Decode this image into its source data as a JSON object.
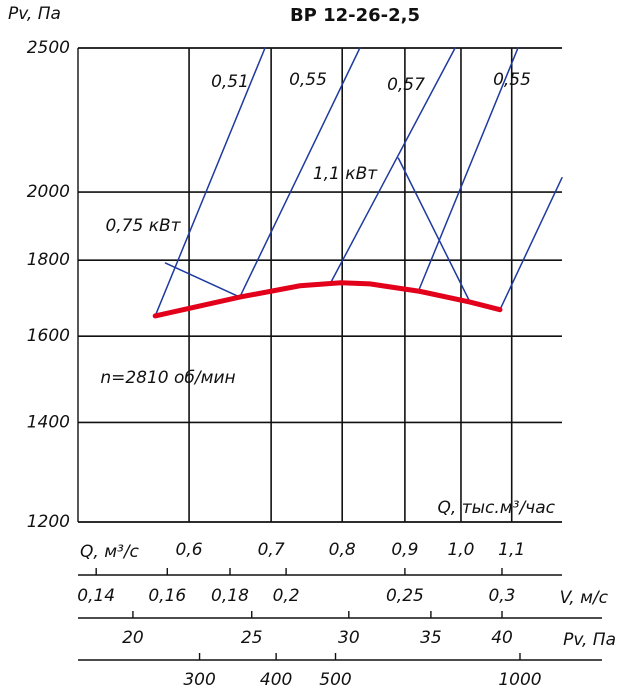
{
  "chart_data": {
    "type": "line",
    "title": "ВР 12-26-2,5",
    "ylabel": "Pv, Па",
    "xlabel": "Q, тыс.м³/час",
    "xscale": "log",
    "yscale": "log",
    "grid": true,
    "xlim": [
      0.487,
      1.209
    ],
    "ylim": [
      1200,
      2500
    ],
    "xticks": [
      {
        "value": 0.6,
        "label": "0,6"
      },
      {
        "value": 0.7,
        "label": "0,7"
      },
      {
        "value": 0.8,
        "label": "0,8"
      },
      {
        "value": 0.9,
        "label": "0,9"
      },
      {
        "value": 1.0,
        "label": "1,0"
      },
      {
        "value": 1.1,
        "label": "1,1"
      }
    ],
    "yticks": [
      1200,
      1400,
      1600,
      1800,
      2000,
      2500
    ],
    "series": [
      {
        "color": "#e3001b",
        "x": [
          0.563,
          0.66,
          0.739,
          0.798,
          0.843,
          0.926,
          1.017,
          1.076
        ],
        "values": [
          1651,
          1700,
          1730,
          1738,
          1735,
          1715,
          1687,
          1667
        ]
      },
      {
        "color": "#1f3aa0",
        "x": [
          0.563,
          0.692
        ],
        "values": [
          1651,
          2500
        ]
      },
      {
        "color": "#1f3aa0",
        "x": [
          0.66,
          0.827
        ],
        "values": [
          1700,
          2500
        ]
      },
      {
        "color": "#1f3aa0",
        "x": [
          0.782,
          0.989
        ],
        "values": [
          1735,
          2500
        ]
      },
      {
        "color": "#1f3aa0",
        "x": [
          0.923,
          1.113
        ],
        "values": [
          1715,
          2500
        ]
      },
      {
        "color": "#1f3aa0",
        "x": [
          1.076,
          1.209
        ],
        "values": [
          1667,
          2045
        ]
      },
      {
        "color": "#1f3aa0",
        "x": [
          0.574,
          0.66
        ],
        "values": [
          1792,
          1700
        ]
      },
      {
        "color": "#1f3aa0",
        "x": [
          0.889,
          1.017
        ],
        "values": [
          2108,
          1687
        ]
      }
    ],
    "annotations": [
      "0,51",
      "0,55",
      "0,57",
      "0,55",
      "1,1 кВт",
      "0,75 кВт",
      "n=2810 об/мин"
    ],
    "extra_axes": [
      {
        "label": "Q, м³/с",
        "scale": "log",
        "xlim": [
          0.1353,
          0.3358
        ],
        "ticks": [
          {
            "value": 0.14,
            "label": "0,14"
          },
          {
            "value": 0.16,
            "label": "0,16"
          },
          {
            "value": 0.18,
            "label": "0,18"
          },
          {
            "value": 0.2,
            "label": "0,2"
          },
          {
            "value": 0.25,
            "label": "0,25"
          },
          {
            "value": 0.3,
            "label": "0,3"
          }
        ]
      },
      {
        "label": "V, м/с",
        "scale": "log",
        "xlim": [
          18.04,
          44.77
        ],
        "ticks": [
          20,
          25,
          30,
          35,
          40
        ]
      },
      {
        "label": "Pv, Па",
        "scale": "log",
        "xlim": [
          190,
          1171
        ],
        "ticks": [
          300,
          400,
          500,
          1000
        ]
      }
    ]
  }
}
